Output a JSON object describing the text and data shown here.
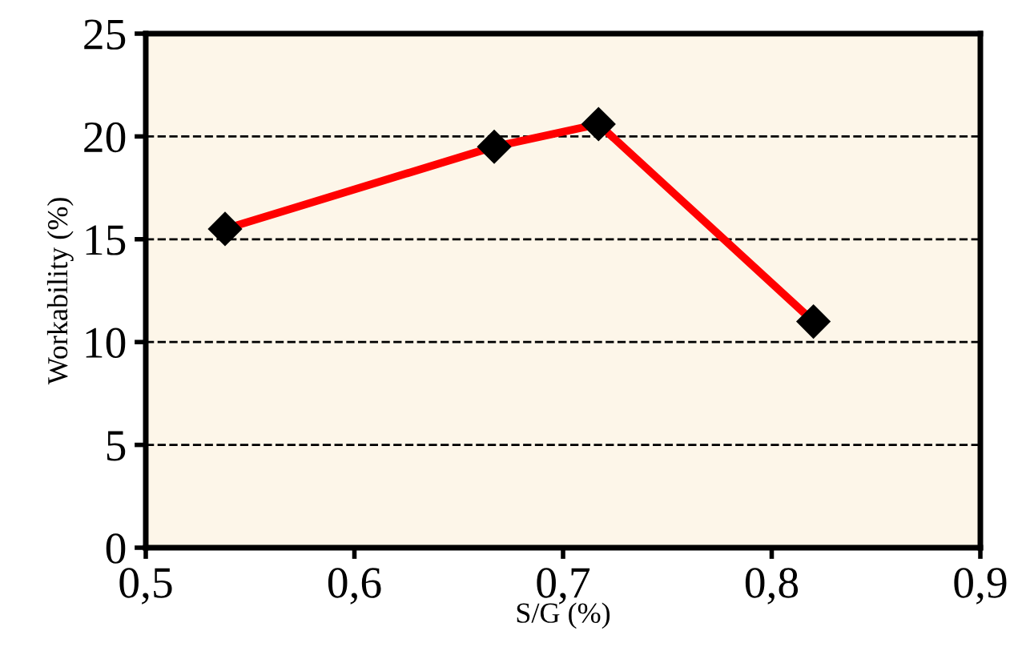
{
  "chart_data": {
    "type": "line",
    "xlabel": "S/G (%)",
    "ylabel": "Workability (%)",
    "x": [
      0.538,
      0.667,
      0.717,
      0.82
    ],
    "series": [
      {
        "color": "#ff0000",
        "values": [
          15.5,
          19.5,
          20.6,
          11.0
        ]
      }
    ],
    "marker": "diamond",
    "line_style": "solid",
    "xlim": [
      0.5,
      0.9
    ],
    "xticks": [
      {
        "value": 0.5,
        "label": "0,5"
      },
      {
        "value": 0.6,
        "label": "0,6"
      },
      {
        "value": 0.7,
        "label": "0,7"
      },
      {
        "value": 0.8,
        "label": "0,8"
      },
      {
        "value": 0.9,
        "label": "0,9"
      }
    ],
    "ylim": [
      0,
      25
    ],
    "yticks": [
      0,
      5,
      10,
      15,
      20,
      25
    ],
    "grid": "y"
  }
}
